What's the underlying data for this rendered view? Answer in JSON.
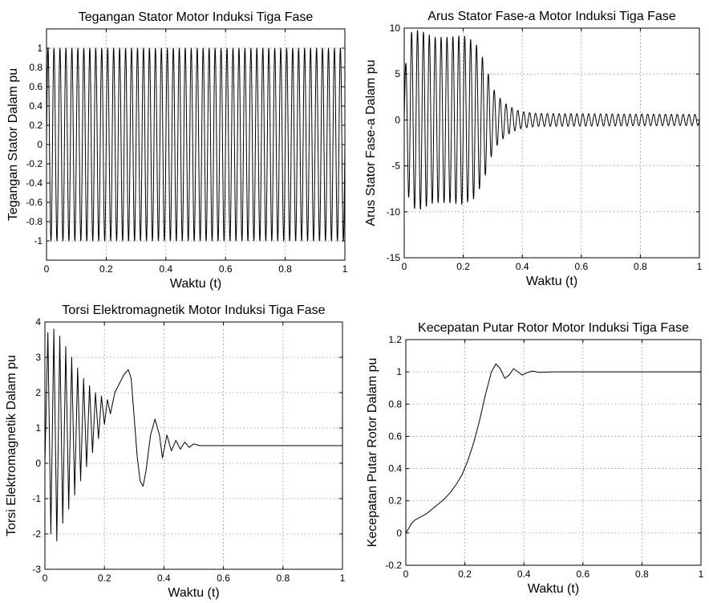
{
  "chart_data": [
    {
      "type": "line",
      "title": "Tegangan Stator Motor Induksi Tiga Fase",
      "xlabel": "Waktu (t)",
      "ylabel": "Tegangan Stator Dalam pu",
      "xlim": [
        0,
        1
      ],
      "ylim": [
        -1.2,
        1.2
      ],
      "xticks": [
        "0",
        "0.2",
        "0.4",
        "0.6",
        "0.8",
        "1"
      ],
      "yticks": [
        "-1",
        "-0.8",
        "-0.6",
        "-0.4",
        "-0.2",
        "0",
        "0.2",
        "0.4",
        "0.6",
        "0.8",
        "1"
      ],
      "grid": true,
      "series": [
        {
          "description": "sinusoid",
          "frequency_hz": 50,
          "amplitude": 1.0
        }
      ]
    },
    {
      "type": "line",
      "title": "Arus Stator Fase-a Motor Induksi Tiga Fase",
      "xlabel": "Waktu (t)",
      "ylabel": "Arus Stator Fase-a Dalam pu",
      "xlim": [
        0,
        1
      ],
      "ylim": [
        -15,
        10
      ],
      "xticks": [
        "0",
        "0.2",
        "0.4",
        "0.6",
        "0.8",
        "1"
      ],
      "yticks": [
        "-15",
        "-10",
        "-5",
        "0",
        "5",
        "10"
      ],
      "grid": true,
      "series": [
        {
          "frequency_hz": 50,
          "envelope": {
            "t": [
              0,
              0.02,
              0.05,
              0.1,
              0.15,
              0.2,
              0.24,
              0.27,
              0.3,
              0.32,
              0.35,
              0.38,
              0.4,
              0.45,
              1.0
            ],
            "amplitude": [
              5,
              9.5,
              9.8,
              9.0,
              9.0,
              9.2,
              8.5,
              6.5,
              3.5,
              2.5,
              1.6,
              1.1,
              0.9,
              0.7,
              0.6
            ]
          }
        }
      ]
    },
    {
      "type": "line",
      "title": "Torsi Elektromagnetik Motor Induksi Tiga Fase",
      "xlabel": "Waktu (t)",
      "ylabel": "Torsi Elektromagnetik Dalam pu",
      "xlim": [
        0,
        1
      ],
      "ylim": [
        -3,
        4
      ],
      "xticks": [
        "0",
        "0.2",
        "0.4",
        "0.6",
        "0.8",
        "1"
      ],
      "yticks": [
        "-3",
        "-2",
        "-1",
        "0",
        "1",
        "2",
        "3",
        "4"
      ],
      "grid": true,
      "series": [
        {
          "points": [
            [
              0,
              0
            ],
            [
              0.01,
              3.7
            ],
            [
              0.02,
              -2.0
            ],
            [
              0.03,
              3.8
            ],
            [
              0.04,
              -2.2
            ],
            [
              0.05,
              3.6
            ],
            [
              0.06,
              -1.7
            ],
            [
              0.07,
              3.3
            ],
            [
              0.08,
              -1.3
            ],
            [
              0.09,
              3.0
            ],
            [
              0.1,
              -0.9
            ],
            [
              0.11,
              2.7
            ],
            [
              0.12,
              -0.5
            ],
            [
              0.13,
              2.4
            ],
            [
              0.14,
              -0.1
            ],
            [
              0.15,
              2.2
            ],
            [
              0.16,
              0.3
            ],
            [
              0.17,
              2.0
            ],
            [
              0.18,
              0.7
            ],
            [
              0.19,
              1.9
            ],
            [
              0.2,
              1.1
            ],
            [
              0.21,
              1.8
            ],
            [
              0.22,
              1.4
            ],
            [
              0.235,
              2.0
            ],
            [
              0.25,
              2.25
            ],
            [
              0.265,
              2.5
            ],
            [
              0.28,
              2.65
            ],
            [
              0.29,
              2.4
            ],
            [
              0.3,
              1.3
            ],
            [
              0.31,
              0.2
            ],
            [
              0.32,
              -0.5
            ],
            [
              0.33,
              -0.65
            ],
            [
              0.34,
              -0.2
            ],
            [
              0.355,
              0.8
            ],
            [
              0.37,
              1.25
            ],
            [
              0.385,
              0.8
            ],
            [
              0.395,
              0.15
            ],
            [
              0.41,
              0.8
            ],
            [
              0.425,
              0.35
            ],
            [
              0.44,
              0.65
            ],
            [
              0.455,
              0.4
            ],
            [
              0.47,
              0.6
            ],
            [
              0.485,
              0.45
            ],
            [
              0.5,
              0.55
            ],
            [
              0.52,
              0.5
            ],
            [
              1.0,
              0.5
            ]
          ]
        }
      ]
    },
    {
      "type": "line",
      "title": "Kecepatan Putar Rotor Motor Induksi Tiga Fase",
      "xlabel": "Waktu (t)",
      "ylabel": "Kecepatan Putar Rotor Dalam pu",
      "xlim": [
        0,
        1
      ],
      "ylim": [
        -0.2,
        1.2
      ],
      "xticks": [
        "0",
        "0.2",
        "0.4",
        "0.6",
        "0.8",
        "1"
      ],
      "yticks": [
        "-0.2",
        "0",
        "0.2",
        "0.4",
        "0.6",
        "0.8",
        "1",
        "1.2"
      ],
      "grid": true,
      "series": [
        {
          "points": [
            [
              0,
              0
            ],
            [
              0.01,
              0.03
            ],
            [
              0.02,
              0.06
            ],
            [
              0.03,
              0.08
            ],
            [
              0.05,
              0.1
            ],
            [
              0.07,
              0.12
            ],
            [
              0.09,
              0.15
            ],
            [
              0.11,
              0.18
            ],
            [
              0.13,
              0.21
            ],
            [
              0.15,
              0.25
            ],
            [
              0.17,
              0.3
            ],
            [
              0.19,
              0.36
            ],
            [
              0.21,
              0.45
            ],
            [
              0.23,
              0.56
            ],
            [
              0.25,
              0.7
            ],
            [
              0.27,
              0.86
            ],
            [
              0.29,
              1.0
            ],
            [
              0.305,
              1.05
            ],
            [
              0.32,
              1.02
            ],
            [
              0.335,
              0.96
            ],
            [
              0.35,
              0.98
            ],
            [
              0.365,
              1.02
            ],
            [
              0.38,
              1.0
            ],
            [
              0.395,
              0.98
            ],
            [
              0.41,
              0.995
            ],
            [
              0.43,
              1.005
            ],
            [
              0.45,
              0.997
            ],
            [
              0.5,
              1.0
            ],
            [
              1.0,
              1.0
            ]
          ]
        }
      ]
    }
  ]
}
